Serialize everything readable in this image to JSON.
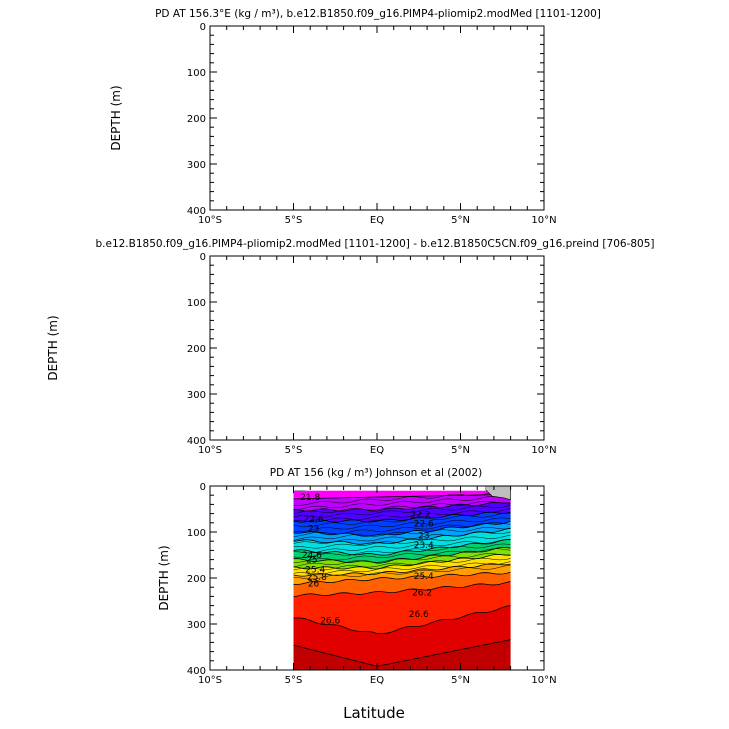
{
  "chart_data": [
    {
      "type": "heatmap",
      "title": "PD AT 156.3°E (kg / m³), b.e12.B1850.f09_g16.PIMP4-pliomip2.modMed [1101-1200]",
      "ylabel": "DEPTH (m)",
      "xlabel": "",
      "x_tick_labels": [
        "10°S",
        "5°S",
        "EQ",
        "5°N",
        "10°N"
      ],
      "y_tick_labels": [
        "0",
        "100",
        "200",
        "300",
        "400"
      ],
      "xlim": [
        -10,
        10
      ],
      "ylim": [
        400,
        0
      ],
      "data": []
    },
    {
      "type": "heatmap",
      "title": "b.e12.B1850.f09_g16.PIMP4-pliomip2.modMed [1101-1200] - b.e12.B1850C5CN.f09_g16.preind [706-805]",
      "ylabel": "DEPTH (m)",
      "xlabel": "",
      "x_tick_labels": [
        "10°S",
        "5°S",
        "EQ",
        "5°N",
        "10°N"
      ],
      "y_tick_labels": [
        "0",
        "100",
        "200",
        "300",
        "400"
      ],
      "xlim": [
        -10,
        10
      ],
      "ylim": [
        400,
        0
      ],
      "data": []
    },
    {
      "type": "heatmap",
      "title": "PD AT 156 (kg / m³) Johnson et al (2002)",
      "ylabel": "DEPTH (m)",
      "xlabel": "Latitude",
      "x_tick_labels": [
        "10°S",
        "5°S",
        "EQ",
        "5°N",
        "10°N"
      ],
      "y_tick_labels": [
        "0",
        "100",
        "200",
        "300",
        "400"
      ],
      "xlim": [
        -10,
        10
      ],
      "ylim": [
        400,
        0
      ],
      "data_extent_lat": [
        -5,
        8
      ],
      "data_extent_depth": [
        10,
        400
      ],
      "contour_labels": [
        {
          "text": "21.8",
          "lat": -4.0,
          "depth": 24
        },
        {
          "text": "22.6",
          "lat": -3.8,
          "depth": 72
        },
        {
          "text": "23",
          "lat": -3.8,
          "depth": 92
        },
        {
          "text": "24.6",
          "lat": -3.9,
          "depth": 150
        },
        {
          "text": "25",
          "lat": -3.9,
          "depth": 160
        },
        {
          "text": "25.4",
          "lat": -3.7,
          "depth": 182
        },
        {
          "text": "25.8",
          "lat": -3.6,
          "depth": 198
        },
        {
          "text": "26",
          "lat": -3.8,
          "depth": 212
        },
        {
          "text": "26.6",
          "lat": -2.8,
          "depth": 292
        },
        {
          "text": "22.2",
          "lat": 2.6,
          "depth": 62
        },
        {
          "text": "22.6",
          "lat": 2.8,
          "depth": 82
        },
        {
          "text": "23",
          "lat": 2.8,
          "depth": 108
        },
        {
          "text": "23.4",
          "lat": 2.8,
          "depth": 128
        },
        {
          "text": "25.4",
          "lat": 2.8,
          "depth": 196
        },
        {
          "text": "26.2",
          "lat": 2.7,
          "depth": 232
        },
        {
          "text": "26.6",
          "lat": 2.5,
          "depth": 278
        }
      ],
      "density_bands": [
        {
          "value": 21.6,
          "color": "#ff00ff",
          "top_depth": [
            10,
            10,
            10
          ]
        },
        {
          "value": 22.0,
          "color": "#c000ff",
          "top_depth": [
            28,
            24,
            18
          ]
        },
        {
          "value": 22.4,
          "color": "#5000ff",
          "top_depth": [
            52,
            52,
            36
          ]
        },
        {
          "value": 22.8,
          "color": "#0040ff",
          "top_depth": [
            76,
            76,
            56
          ]
        },
        {
          "value": 23.2,
          "color": "#00a0ff",
          "top_depth": [
            100,
            108,
            78
          ]
        },
        {
          "value": 23.8,
          "color": "#00e0e0",
          "top_depth": [
            118,
            126,
            94
          ]
        },
        {
          "value": 24.4,
          "color": "#00d070",
          "top_depth": [
            140,
            150,
            118
          ]
        },
        {
          "value": 24.8,
          "color": "#80e000",
          "top_depth": [
            160,
            166,
            134
          ]
        },
        {
          "value": 25.2,
          "color": "#ffe000",
          "top_depth": [
            178,
            178,
            148
          ]
        },
        {
          "value": 25.6,
          "color": "#ffa000",
          "top_depth": [
            194,
            190,
            168
          ]
        },
        {
          "value": 26.0,
          "color": "#ff6000",
          "top_depth": [
            212,
            202,
            188
          ]
        },
        {
          "value": 26.4,
          "color": "#ff2000",
          "top_depth": [
            238,
            232,
            210
          ]
        },
        {
          "value": 26.6,
          "color": "#e00000",
          "top_depth": [
            286,
            322,
            262
          ]
        },
        {
          "value": 26.8,
          "color": "#c00000",
          "top_depth": [
            346,
            392,
            334
          ]
        }
      ],
      "band_lats": [
        -5,
        0,
        8
      ],
      "land_color": "#bebebe"
    }
  ]
}
